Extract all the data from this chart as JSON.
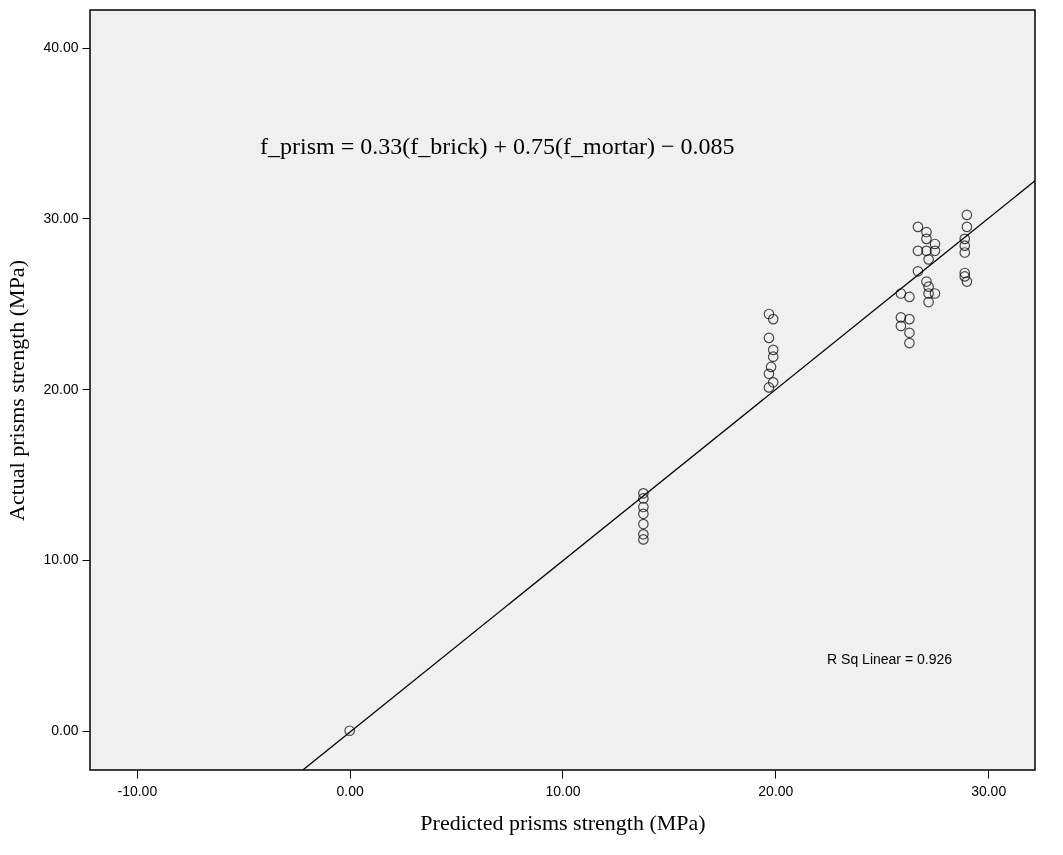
{
  "chart_data": {
    "type": "scatter",
    "xlabel": "Predicted prisms strength (MPa)",
    "ylabel": "Actual prisms strength (MPa)",
    "annotations": [
      "f_prism = 0.33(f_brick) + 0.75(f_mortar) − 0.085",
      "R Sq Linear = 0.926"
    ],
    "xlim": [
      -12.2,
      32.2
    ],
    "ylim": [
      -2.3,
      42.2
    ],
    "xticks": [
      {
        "value": -10,
        "label": "-10.00"
      },
      {
        "value": 0,
        "label": "0.00"
      },
      {
        "value": 10,
        "label": "10.00"
      },
      {
        "value": 20,
        "label": "20.00"
      },
      {
        "value": 30,
        "label": "30.00"
      }
    ],
    "yticks": [
      {
        "value": 0,
        "label": "0.00"
      },
      {
        "value": 10,
        "label": "10.00"
      },
      {
        "value": 20,
        "label": "20.00"
      },
      {
        "value": 30,
        "label": "30.00"
      },
      {
        "value": 40,
        "label": "40.00"
      }
    ],
    "legend": false,
    "series": [
      {
        "color": "#000000",
        "marker": "circle",
        "x": [
          0,
          13.8,
          13.8,
          13.8,
          13.8,
          13.8,
          13.8,
          13.8,
          19.7,
          19.9,
          19.7,
          19.9,
          19.9,
          19.8,
          19.7,
          19.9,
          19.7,
          25.9,
          26.3,
          25.9,
          25.9,
          26.3,
          26.3,
          26.3,
          26.7,
          26.7,
          26.7,
          27.1,
          27.1,
          27.5,
          27.1,
          27.5,
          27.2,
          27.1,
          27.2,
          27.5,
          27.2,
          27.2,
          29.0,
          29.0,
          28.9,
          28.9,
          28.9,
          28.9,
          28.9,
          29.0
        ],
        "values": [
          0,
          11.2,
          11.5,
          12.1,
          12.7,
          13.1,
          13.6,
          13.9,
          24.4,
          24.1,
          23.0,
          22.3,
          21.9,
          21.3,
          20.9,
          20.4,
          20.1,
          25.6,
          25.4,
          24.2,
          23.7,
          24.1,
          23.3,
          22.7,
          29.5,
          28.1,
          26.9,
          29.2,
          28.8,
          28.5,
          28.1,
          28.1,
          27.6,
          26.3,
          26.0,
          25.6,
          25.6,
          25.1,
          30.2,
          29.5,
          28.8,
          28.4,
          28.0,
          26.8,
          26.6,
          26.3
        ]
      },
      {
        "type": "line",
        "color": "#000000",
        "line_style": "solid",
        "x": [
          -2.2,
          32.2
        ],
        "values": [
          -2.3,
          32.2
        ]
      }
    ]
  }
}
